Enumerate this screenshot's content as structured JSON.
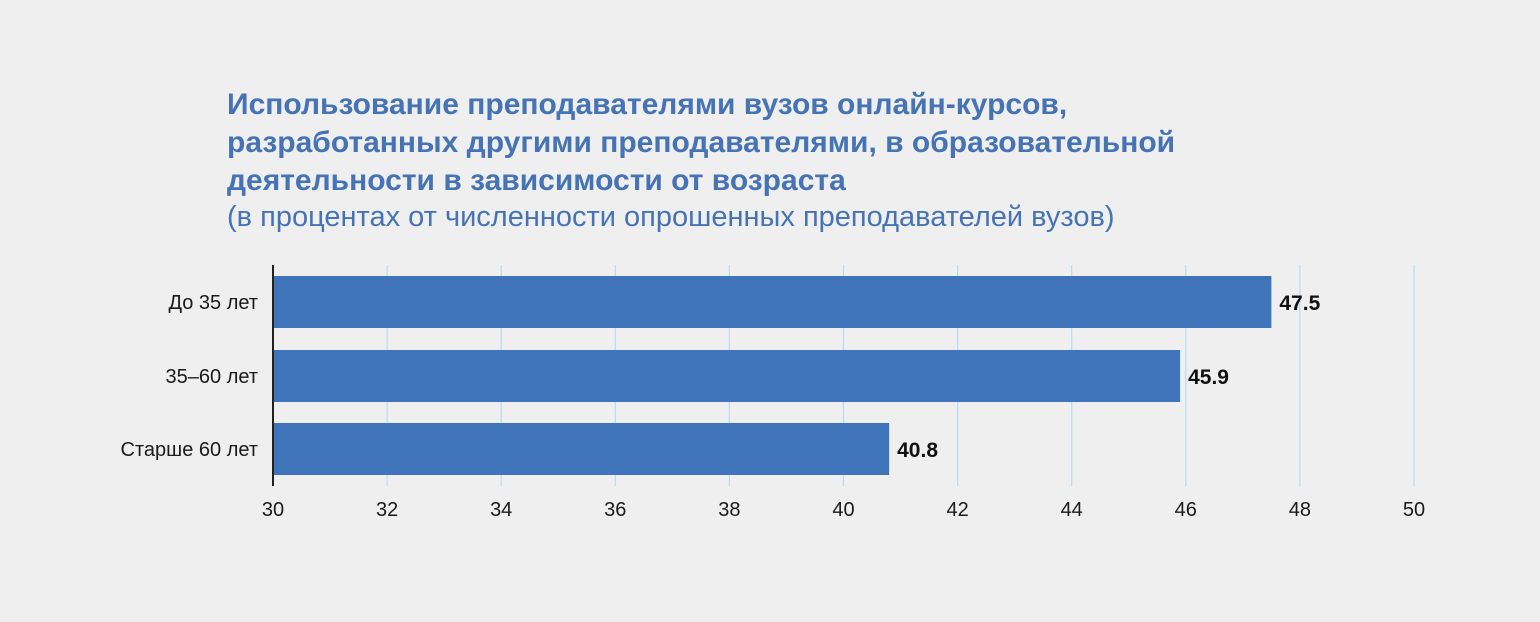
{
  "chart_data": {
    "type": "bar",
    "orientation": "horizontal",
    "title": "Использование преподавателями вузов онлайн-курсов, разработанных другими преподавателями, в образовательной деятельности в зависимости от возраста",
    "title_lines": [
      "Использование преподавателями вузов онлайн-курсов,",
      "разработанных другими преподавателями, в образовательной",
      "деятельности в зависимости от возраста"
    ],
    "subtitle": "(в процентах от численности опрошенных преподавателей вузов)",
    "categories": [
      "До 35 лет",
      "35–60 лет",
      "Старше 60 лет"
    ],
    "values": [
      47.5,
      45.9,
      40.8
    ],
    "value_labels": [
      "47.5",
      "45.9",
      "40.8"
    ],
    "xlim": [
      30,
      50
    ],
    "xticks": [
      30,
      32,
      34,
      36,
      38,
      40,
      42,
      44,
      46,
      48,
      50
    ],
    "xlabel": "",
    "ylabel": "",
    "grid": true,
    "colors": {
      "bar": "#3f74bb",
      "grid": "#b9dcee",
      "title": "#4573b4",
      "axis": "#222222"
    }
  }
}
